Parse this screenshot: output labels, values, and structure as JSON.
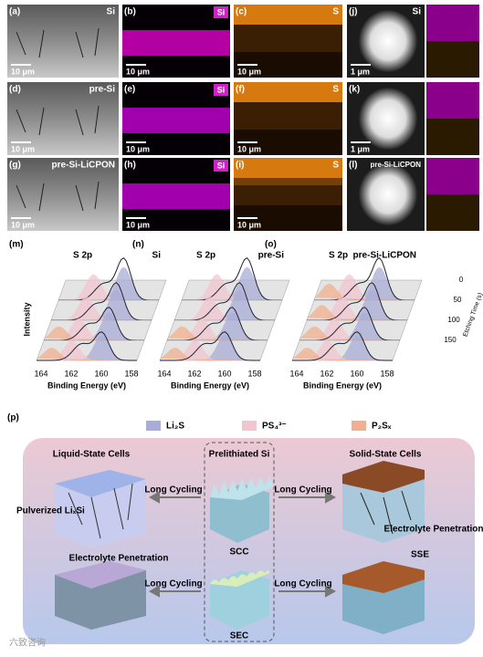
{
  "micrographs": [
    {
      "sem": {
        "label": "(a)",
        "tag": "Si",
        "scale": "10 μm"
      },
      "si_map": {
        "label": "(b)",
        "tag": "Si",
        "scale": "10 μm"
      },
      "s_map": {
        "label": "(c)",
        "tag": "S",
        "scale": "10 μm"
      },
      "tem": {
        "label": "(j)",
        "tag": "Si",
        "scale": "1 μm"
      }
    },
    {
      "sem": {
        "label": "(d)",
        "tag": "pre-Si",
        "scale": "10 μm"
      },
      "si_map": {
        "label": "(e)",
        "tag": "Si",
        "scale": "10 μm"
      },
      "s_map": {
        "label": "(f)",
        "tag": "S",
        "scale": "10 μm"
      },
      "tem": {
        "label": "(k)",
        "scale": "1 μm"
      }
    },
    {
      "sem": {
        "label": "(g)",
        "tag": "pre-Si-LiCPON",
        "scale": "10 μm"
      },
      "si_map": {
        "label": "(h)",
        "tag": "Si",
        "scale": "10 μm"
      },
      "s_map": {
        "label": "(i)",
        "tag": "S",
        "scale": "10 μm"
      },
      "tem": {
        "label": "(l)",
        "tag": "pre-Si-LiCPON"
      }
    }
  ],
  "xps": {
    "panels": [
      {
        "label": "(m)",
        "orbital": "S 2p",
        "sample": "Si"
      },
      {
        "label": "(n)",
        "orbital": "S 2p",
        "sample": "pre-Si"
      },
      {
        "label": "(o)",
        "orbital": "S 2p",
        "sample": "pre-Si-LiCPON"
      }
    ],
    "x_label": "Binding Energy (eV)",
    "y_label": "Intensity",
    "x_ticks": [
      164,
      162,
      160,
      158
    ],
    "depth_label": "Etching Time (s)",
    "depth_ticks": [
      0,
      50,
      100,
      150
    ],
    "legend": [
      "Li₂S",
      "PS₄³⁻",
      "P₂Sₓ"
    ]
  },
  "schematic": {
    "label": "(p)",
    "liquid_title": "Liquid-State Cells",
    "center_title": "Prelithiated Si",
    "solid_title": "Solid-State Cells",
    "pulverized": "Pulverized LiₓSi",
    "arrows": [
      "Long Cycling",
      "Long Cycling",
      "Long Cycling",
      "Long Cycling"
    ],
    "penetration_left": "Electrolyte Penetration",
    "penetration_right": "Electrolyte Penetration",
    "scc": "SCC",
    "sec": "SEC",
    "sse": "SSE"
  },
  "watermark": "六致咨询"
}
